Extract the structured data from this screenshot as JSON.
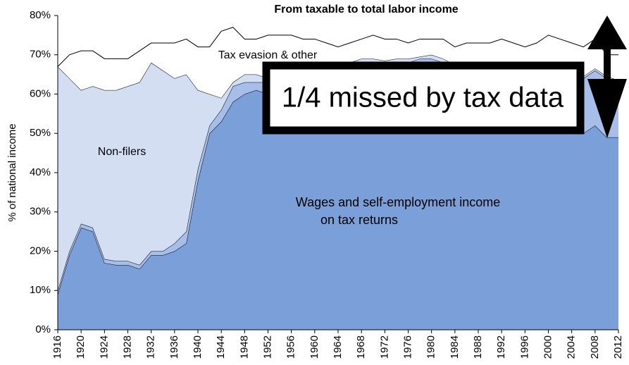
{
  "chart_data": {
    "type": "stacked-area",
    "title": "From taxable to total labor income",
    "y_label": "% of national income",
    "x": [
      1916,
      1918,
      1920,
      1922,
      1924,
      1926,
      1928,
      1930,
      1932,
      1934,
      1936,
      1938,
      1940,
      1942,
      1944,
      1946,
      1948,
      1950,
      1952,
      1954,
      1956,
      1958,
      1960,
      1962,
      1964,
      1966,
      1968,
      1970,
      1972,
      1974,
      1976,
      1978,
      1980,
      1982,
      1984,
      1986,
      1988,
      1990,
      1992,
      1994,
      1996,
      1998,
      2000,
      2002,
      2004,
      2006,
      2008,
      2010,
      2012
    ],
    "xlim": [
      1916,
      2012
    ],
    "xticks": [
      1916,
      1920,
      1924,
      1928,
      1932,
      1936,
      1940,
      1944,
      1948,
      1952,
      1956,
      1960,
      1964,
      1968,
      1972,
      1976,
      1980,
      1984,
      1988,
      1992,
      1996,
      2000,
      2004,
      2008,
      2012
    ],
    "ylim": [
      0,
      80
    ],
    "yticks": [
      {
        "value": 0,
        "label": "0%"
      },
      {
        "value": 10,
        "label": "10%"
      },
      {
        "value": 20,
        "label": "20%"
      },
      {
        "value": 30,
        "label": "30%"
      },
      {
        "value": 40,
        "label": "40%"
      },
      {
        "value": 50,
        "label": "50%"
      },
      {
        "value": 60,
        "label": "60%"
      },
      {
        "value": 70,
        "label": "70%"
      },
      {
        "value": 80,
        "label": "80%"
      }
    ],
    "series": [
      {
        "color": "#7ba0d9",
        "values": [
          9,
          19,
          26,
          25,
          17,
          16.5,
          16.5,
          15.5,
          19,
          19,
          20,
          22,
          38,
          50,
          53,
          58,
          60,
          61,
          60,
          59,
          60,
          60,
          61,
          61,
          62,
          62,
          63,
          63,
          62,
          63,
          62,
          63,
          63,
          61,
          59,
          59,
          58,
          57,
          56,
          54,
          52,
          53,
          54,
          53,
          51,
          50,
          52,
          49,
          49
        ]
      },
      {
        "color": "#a7bfe8",
        "values": [
          1,
          1,
          1,
          1,
          1,
          1,
          1,
          1,
          1,
          1,
          2,
          3,
          3,
          2,
          3,
          4,
          3,
          2,
          3,
          4,
          4,
          4,
          4,
          4,
          4,
          5,
          5,
          5,
          6,
          5,
          6,
          6,
          6,
          7,
          8,
          8,
          9,
          9,
          10,
          11,
          12,
          11,
          12,
          12,
          13,
          14,
          14,
          15,
          14
        ]
      },
      {
        "color": "#d3def2",
        "values": [
          57,
          44,
          34,
          36,
          43,
          43.5,
          44.5,
          46.5,
          48,
          46,
          42,
          40,
          20,
          8,
          3,
          1,
          2,
          2,
          1,
          1,
          1,
          1,
          1,
          1,
          1,
          1,
          1,
          1,
          0.5,
          1,
          1,
          0.5,
          1,
          1,
          0.5,
          0.5,
          0.5,
          0.5,
          0.5,
          0.5,
          0.5,
          0.5,
          0.5,
          0.5,
          0.5,
          0.5,
          0.5,
          0.5,
          0.5
        ]
      },
      {
        "color": "#ffffff",
        "values": [
          0,
          6,
          10,
          9,
          8,
          8,
          7,
          8,
          5,
          7,
          9,
          9,
          11,
          12,
          17,
          14,
          9,
          9,
          11,
          11,
          10,
          9,
          8,
          7,
          5,
          5,
          5,
          6,
          5.5,
          5,
          4,
          4.5,
          4,
          5,
          4.5,
          5.5,
          5.5,
          6.5,
          7.5,
          7.5,
          7.5,
          8.5,
          8.5,
          8.5,
          8.5,
          7.5,
          7.5,
          5.5,
          6.5
        ]
      }
    ],
    "annotations": [
      "Tax evasion & other",
      "Non-filers",
      "Wages and self-employment income",
      "on tax returns",
      "1/4 missed by tax data"
    ]
  }
}
